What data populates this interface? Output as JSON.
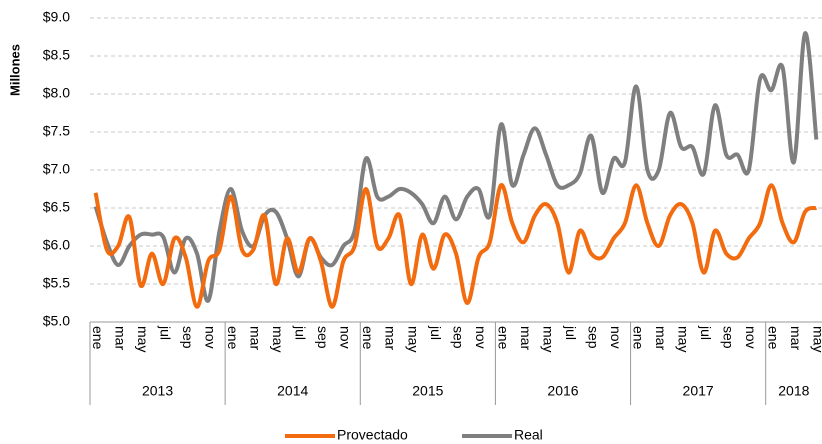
{
  "chart_data": {
    "type": "line",
    "y_label": "Millones",
    "categories": [
      "ene",
      null,
      "mar",
      null,
      "may",
      null,
      "jul",
      null,
      "sep",
      null,
      "nov",
      null,
      "ene",
      null,
      "mar",
      null,
      "may",
      null,
      "jul",
      null,
      "sep",
      null,
      "nov",
      null,
      "ene",
      null,
      "mar",
      null,
      "may",
      null,
      "jul",
      null,
      "sep",
      null,
      "nov",
      null,
      "ene",
      null,
      "mar",
      null,
      "may",
      null,
      "jul",
      null,
      "sep",
      null,
      "nov",
      null,
      "ene",
      null,
      "mar",
      null,
      "may",
      null,
      "jul",
      null,
      "sep",
      null,
      "nov",
      null,
      "ene",
      null,
      "mar",
      null,
      "may"
    ],
    "groups": [
      "2013",
      "2014",
      "2015",
      "2016",
      "2017",
      "2018"
    ],
    "series": [
      {
        "name": "Provectado",
        "color": "#f26b0f",
        "values": [
          6.7,
          5.95,
          6.0,
          6.38,
          5.48,
          5.9,
          5.5,
          6.1,
          5.85,
          5.2,
          5.8,
          5.95,
          6.65,
          5.95,
          5.95,
          6.4,
          5.5,
          6.1,
          5.65,
          6.1,
          5.8,
          5.2,
          5.8,
          6.0,
          6.75,
          6.0,
          6.1,
          6.4,
          5.5,
          6.15,
          5.7,
          6.15,
          5.9,
          5.25,
          5.85,
          6.05,
          6.8,
          6.3,
          6.05,
          6.4,
          6.55,
          6.3,
          5.65,
          6.2,
          5.9,
          5.85,
          6.1,
          6.3,
          6.8,
          6.3,
          6.0,
          6.4,
          6.55,
          6.3,
          5.65,
          6.2,
          5.9,
          5.85,
          6.1,
          6.3,
          6.8,
          6.3,
          6.05,
          6.45,
          6.5
        ]
      },
      {
        "name": "Real",
        "color": "#7f7f7f",
        "values": [
          6.52,
          6.05,
          5.75,
          6.0,
          6.15,
          6.15,
          6.12,
          5.65,
          6.1,
          5.9,
          5.28,
          6.2,
          6.75,
          6.2,
          6.0,
          6.4,
          6.45,
          6.1,
          5.6,
          6.1,
          5.85,
          5.75,
          6.0,
          6.2,
          7.15,
          6.65,
          6.65,
          6.75,
          6.7,
          6.55,
          6.3,
          6.65,
          6.35,
          6.65,
          6.75,
          6.4,
          7.6,
          6.8,
          7.2,
          7.55,
          7.2,
          6.8,
          6.8,
          6.95,
          7.45,
          6.7,
          7.15,
          7.1,
          8.1,
          7.0,
          7.0,
          7.75,
          7.3,
          7.3,
          6.95,
          7.85,
          7.2,
          7.2,
          7.0,
          8.2,
          8.05,
          8.35,
          7.1,
          8.8,
          7.4
        ]
      }
    ],
    "ylim": [
      5,
      9
    ],
    "yticks": [
      {
        "value": 5,
        "label": "$5.0"
      },
      {
        "value": 5.5,
        "label": "$5.5"
      },
      {
        "value": 6,
        "label": "$6.0"
      },
      {
        "value": 6.5,
        "label": "$6.5"
      },
      {
        "value": 7,
        "label": "$7.0"
      },
      {
        "value": 7.5,
        "label": "$7.5"
      },
      {
        "value": 8,
        "label": "$8.0"
      },
      {
        "value": 8.5,
        "label": "$8.5"
      },
      {
        "value": 9,
        "label": "$9.0"
      }
    ],
    "grid": true
  }
}
